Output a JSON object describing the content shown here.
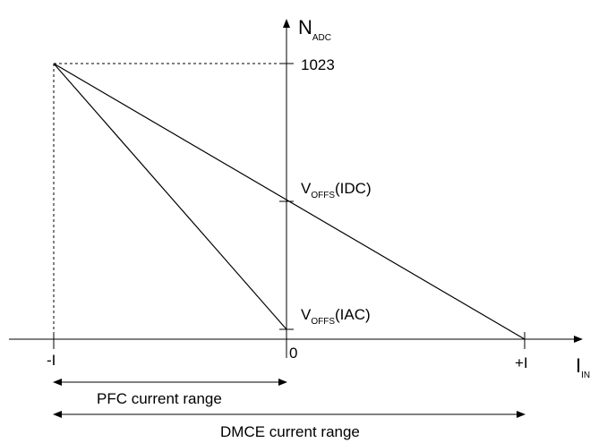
{
  "y_axis": {
    "main": "N",
    "sub": "ADC"
  },
  "x_axis": {
    "main": "I",
    "sub": "IN"
  },
  "y_tick_top": "1023",
  "offset_idc": {
    "main": "V",
    "sub": "OFFS",
    "suffix": "(IDC)"
  },
  "offset_iac": {
    "main": "V",
    "sub": "OFFS",
    "suffix": "(IAC)"
  },
  "x_ticks": {
    "neg": "-I",
    "zero": "0",
    "pos": "+I"
  },
  "ranges": {
    "pfc": "PFC current range",
    "dmce": "DMCE current range"
  }
}
